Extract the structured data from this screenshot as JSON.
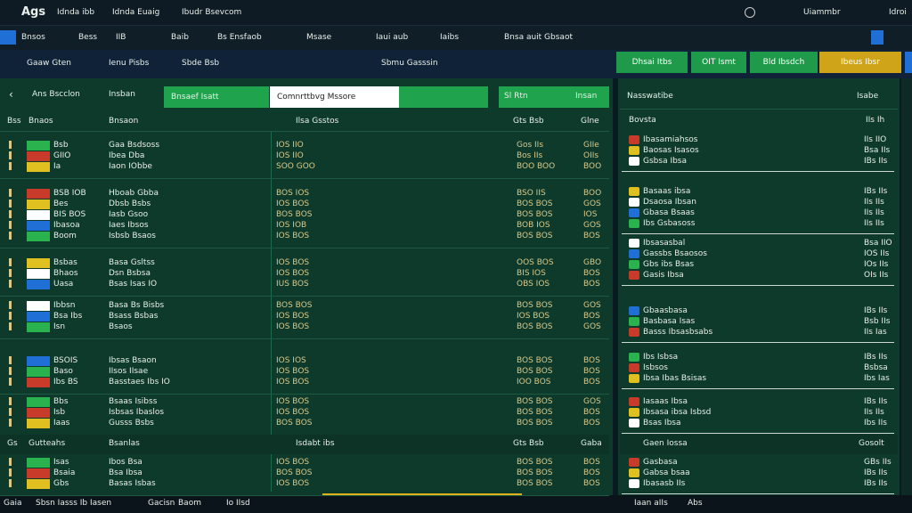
{
  "topbar": {
    "logo": "Ags",
    "nav": [
      "Idnda ibb",
      "Idnda Euaig",
      "Ibudr Bsevcom"
    ],
    "right": [
      "Uiammbr",
      "Idroi"
    ]
  },
  "tabs": [
    "Bnsos",
    "Bess",
    "IIB",
    "Baib",
    "Bs Ensfaob",
    "Msase",
    "Iaui aub",
    "Iaibs",
    "Bnsa auit Gbsaot"
  ],
  "filters": [
    "Gaaw Gten",
    "Ienu Pisbs",
    "Sbde Bsb",
    "Sbmu Gasssin"
  ],
  "buttons": [
    "Dhsai Itbs",
    "OIT Ismt",
    "Bld Ibsdch",
    "Ibeus Ibsr"
  ],
  "left": {
    "title": "Ans Bscclon",
    "subtitle": "Insban",
    "toggle": "Bnsaef Isatt",
    "dropdown": "Comnrttbvg Mssore",
    "tab": "Sl Rtn",
    "tab2": "Insan",
    "columns": [
      "Bss",
      "Bnaos",
      "Bnsaon",
      "Ilsa Gsstos",
      "Gts Bsb",
      "Glne"
    ],
    "groups": [
      {
        "rows": [
          [
            "Bsb",
            "Gaa Bsdsoss",
            "IOS IIO",
            "Gos IIs",
            "GIIe"
          ],
          [
            "GIIO",
            "Ibea Dba",
            "IOS IIO",
            "Bos IIs",
            "OIIs"
          ],
          [
            "Ia",
            "Iaon IObbe",
            "SOO GOO",
            "BOO BOO",
            "BOO"
          ]
        ]
      },
      {
        "rows": [
          [
            "BSB IOB",
            "Hboab Gbba",
            "BOS IOS",
            "BSO IIS",
            "BOO"
          ],
          [
            "Bes",
            "Dbsb Bsbs",
            "IOS BOS",
            "BOS BOS",
            "GOS"
          ],
          [
            "BIS BOS",
            "Iasb Gsoo",
            "BOS BOS",
            "BOS BOS",
            "IOS"
          ],
          [
            "Ibasoa",
            "Iaes Ibsos",
            "IOS IOB",
            "BOB IOS",
            "GOS"
          ],
          [
            "Boom",
            "Isbsb Bsaos",
            "IOS BOS",
            "BOS BOS",
            "BOS"
          ]
        ]
      },
      {
        "rows": [
          [
            "Bsbas",
            "Basa Gsltss",
            "IOS BOS",
            "OOS BOS",
            "GBO"
          ],
          [
            "Bhaos",
            "Dsn Bsbsa",
            "IOS BOS",
            "BIS IOS",
            "BOS"
          ],
          [
            "Uasa",
            "Bsas Isas IO",
            "IUS BOS",
            "OBS IOS",
            "BOS"
          ]
        ]
      },
      {
        "rows": [
          [
            "Ibbsn",
            "Basa Bs Bisbs",
            "BOS BOS",
            "BOS BOS",
            "GOS"
          ],
          [
            "Bsa Ibs",
            "Bsass Bsbas",
            "IOS BOS",
            "IOS BOS",
            "BOS"
          ],
          [
            "Isn",
            "Bsaos",
            "IOS BOS",
            "BOS BOS",
            "GOS"
          ]
        ]
      },
      {
        "rows": [
          [
            "BSOIS",
            "Ibsas Bsaon",
            "IOS IOS",
            "BOS BOS",
            "BOS"
          ],
          [
            "Baso",
            "IIsos IIsae",
            "IOS BOS",
            "BOS BOS",
            "BOS"
          ],
          [
            "Ibs BS",
            "Basstaes Ibs IO",
            "IOS BOS",
            "IOO BOS",
            "BOS"
          ]
        ]
      },
      {
        "rows": [
          [
            "Bbs",
            "Bsaas Isibss",
            "IOS BOS",
            "BOS BOS",
            "GOS"
          ],
          [
            "Isb",
            "Isbsas Ibaslos",
            "IOS BOS",
            "BOS BOS",
            "BOS"
          ],
          [
            "Iaas",
            "Gusss Bsbs",
            "BOS BOS",
            "BOS BOS",
            "BOS"
          ]
        ]
      }
    ],
    "section": [
      "Gs",
      "Gutteahs",
      "Bsanlas",
      "Isdabt ibs",
      "Gts Bsb",
      "Gaba"
    ],
    "groups2": [
      {
        "rows": [
          [
            "Isas",
            "Ibos Bsa",
            "IOS BOS",
            "BOS BOS",
            "BOS"
          ],
          [
            "Bsaia",
            "Bsa Ibsa",
            "BOS BOS",
            "BOS BOS",
            "BOS"
          ],
          [
            "Gbs",
            "Basas Isbas",
            "IOS BOS",
            "BOS BOS",
            "BOS"
          ]
        ]
      }
    ]
  },
  "right": {
    "title": "Nasswatibe",
    "subtitle": "Isabe",
    "header": [
      "Bovsta",
      "IIs Ih"
    ],
    "groups": [
      {
        "rows": [
          [
            "Ibasamiahsos",
            "IIs IIO"
          ],
          [
            "Baosas Isasos",
            "Bsa IIs"
          ],
          [
            "Gsbsa Ibsa",
            "IBs IIs"
          ]
        ]
      },
      {
        "rows": [
          [
            "Basaas ibsa",
            "IBs IIs"
          ],
          [
            "Dsaosa Ibsan",
            "IIs IIs"
          ],
          [
            "Gbasa Bsaas",
            "IIs IIs"
          ],
          [
            "Ibs Gsbasoss",
            "IIs IIs"
          ]
        ]
      },
      {
        "rows": [
          [
            "Ibsasasbal",
            "Bsa IIO"
          ],
          [
            "Gassbs Bsaosos",
            "IOS IIs"
          ],
          [
            "Gbs ibs Bsas",
            "IOs IIs"
          ],
          [
            "Gasis Ibsa",
            "OIs IIs"
          ]
        ]
      },
      {
        "rows": [
          [
            "Gbaasbasa",
            "IBs IIs"
          ],
          [
            "Basbasa Isas",
            "Bsb IIs"
          ],
          [
            "Basss Ibsasbsabs",
            "IIs Ias"
          ]
        ]
      },
      {
        "rows": [
          [
            "Ibs Isbsa",
            "IBs IIs"
          ],
          [
            "Isbsos",
            "Bsbsa"
          ],
          [
            "Ibsa Ibas Bsisas",
            "Ibs Ias"
          ]
        ]
      },
      {
        "rows": [
          [
            "Iasaas Ibsa",
            "IBs IIs"
          ],
          [
            "Ibsasa ibsa Isbsd",
            "IIs IIs"
          ],
          [
            "Bsas Ibsa",
            "Ibs IIs"
          ]
        ]
      }
    ],
    "section": [
      "Gaen Iossa",
      "Gosolt"
    ],
    "groups2": [
      {
        "rows": [
          [
            "Gasbasa",
            "GBs IIs"
          ],
          [
            "Gabsa bsaa",
            "IBs IIs"
          ],
          [
            "Ibasasb IIs",
            "IBs IIs"
          ]
        ]
      }
    ]
  },
  "footer": [
    "Gaia",
    "Sbsn Iasss Ib Iasen",
    "Gacisn",
    "Baom",
    "Io IIsd"
  ],
  "footer_right": [
    "Iaan aIIs",
    "Abs"
  ]
}
